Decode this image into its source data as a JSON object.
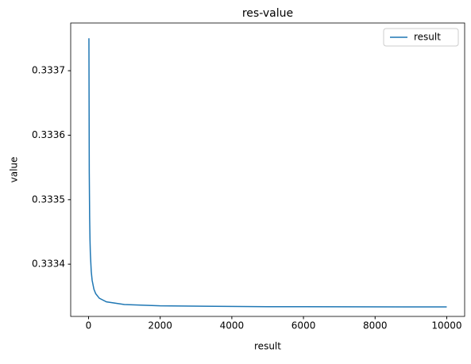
{
  "chart_data": {
    "type": "line",
    "title": "res-value",
    "xlabel": "result",
    "ylabel": "value",
    "x": [
      10,
      20,
      30,
      40,
      50,
      75,
      100,
      150,
      200,
      300,
      500,
      1000,
      2000,
      5000,
      10000
    ],
    "series": [
      {
        "name": "result",
        "color": "#1f77b4",
        "values": [
          0.3337503,
          0.3335418,
          0.3334723,
          0.3334376,
          0.3334167,
          0.3333889,
          0.333375,
          0.3333611,
          0.3333542,
          0.3333472,
          0.3333416,
          0.3333375,
          0.3333354,
          0.3333341,
          0.3333337
        ]
      }
    ],
    "xlim": [
      -499,
      10500
    ],
    "xticks": [
      0,
      2000,
      4000,
      6000,
      8000,
      10000
    ],
    "ylim": [
      0.333319,
      0.333774
    ],
    "yticks": [
      0.3334,
      0.3335,
      0.3336,
      0.3337
    ],
    "grid": false,
    "legend": "upper right"
  }
}
